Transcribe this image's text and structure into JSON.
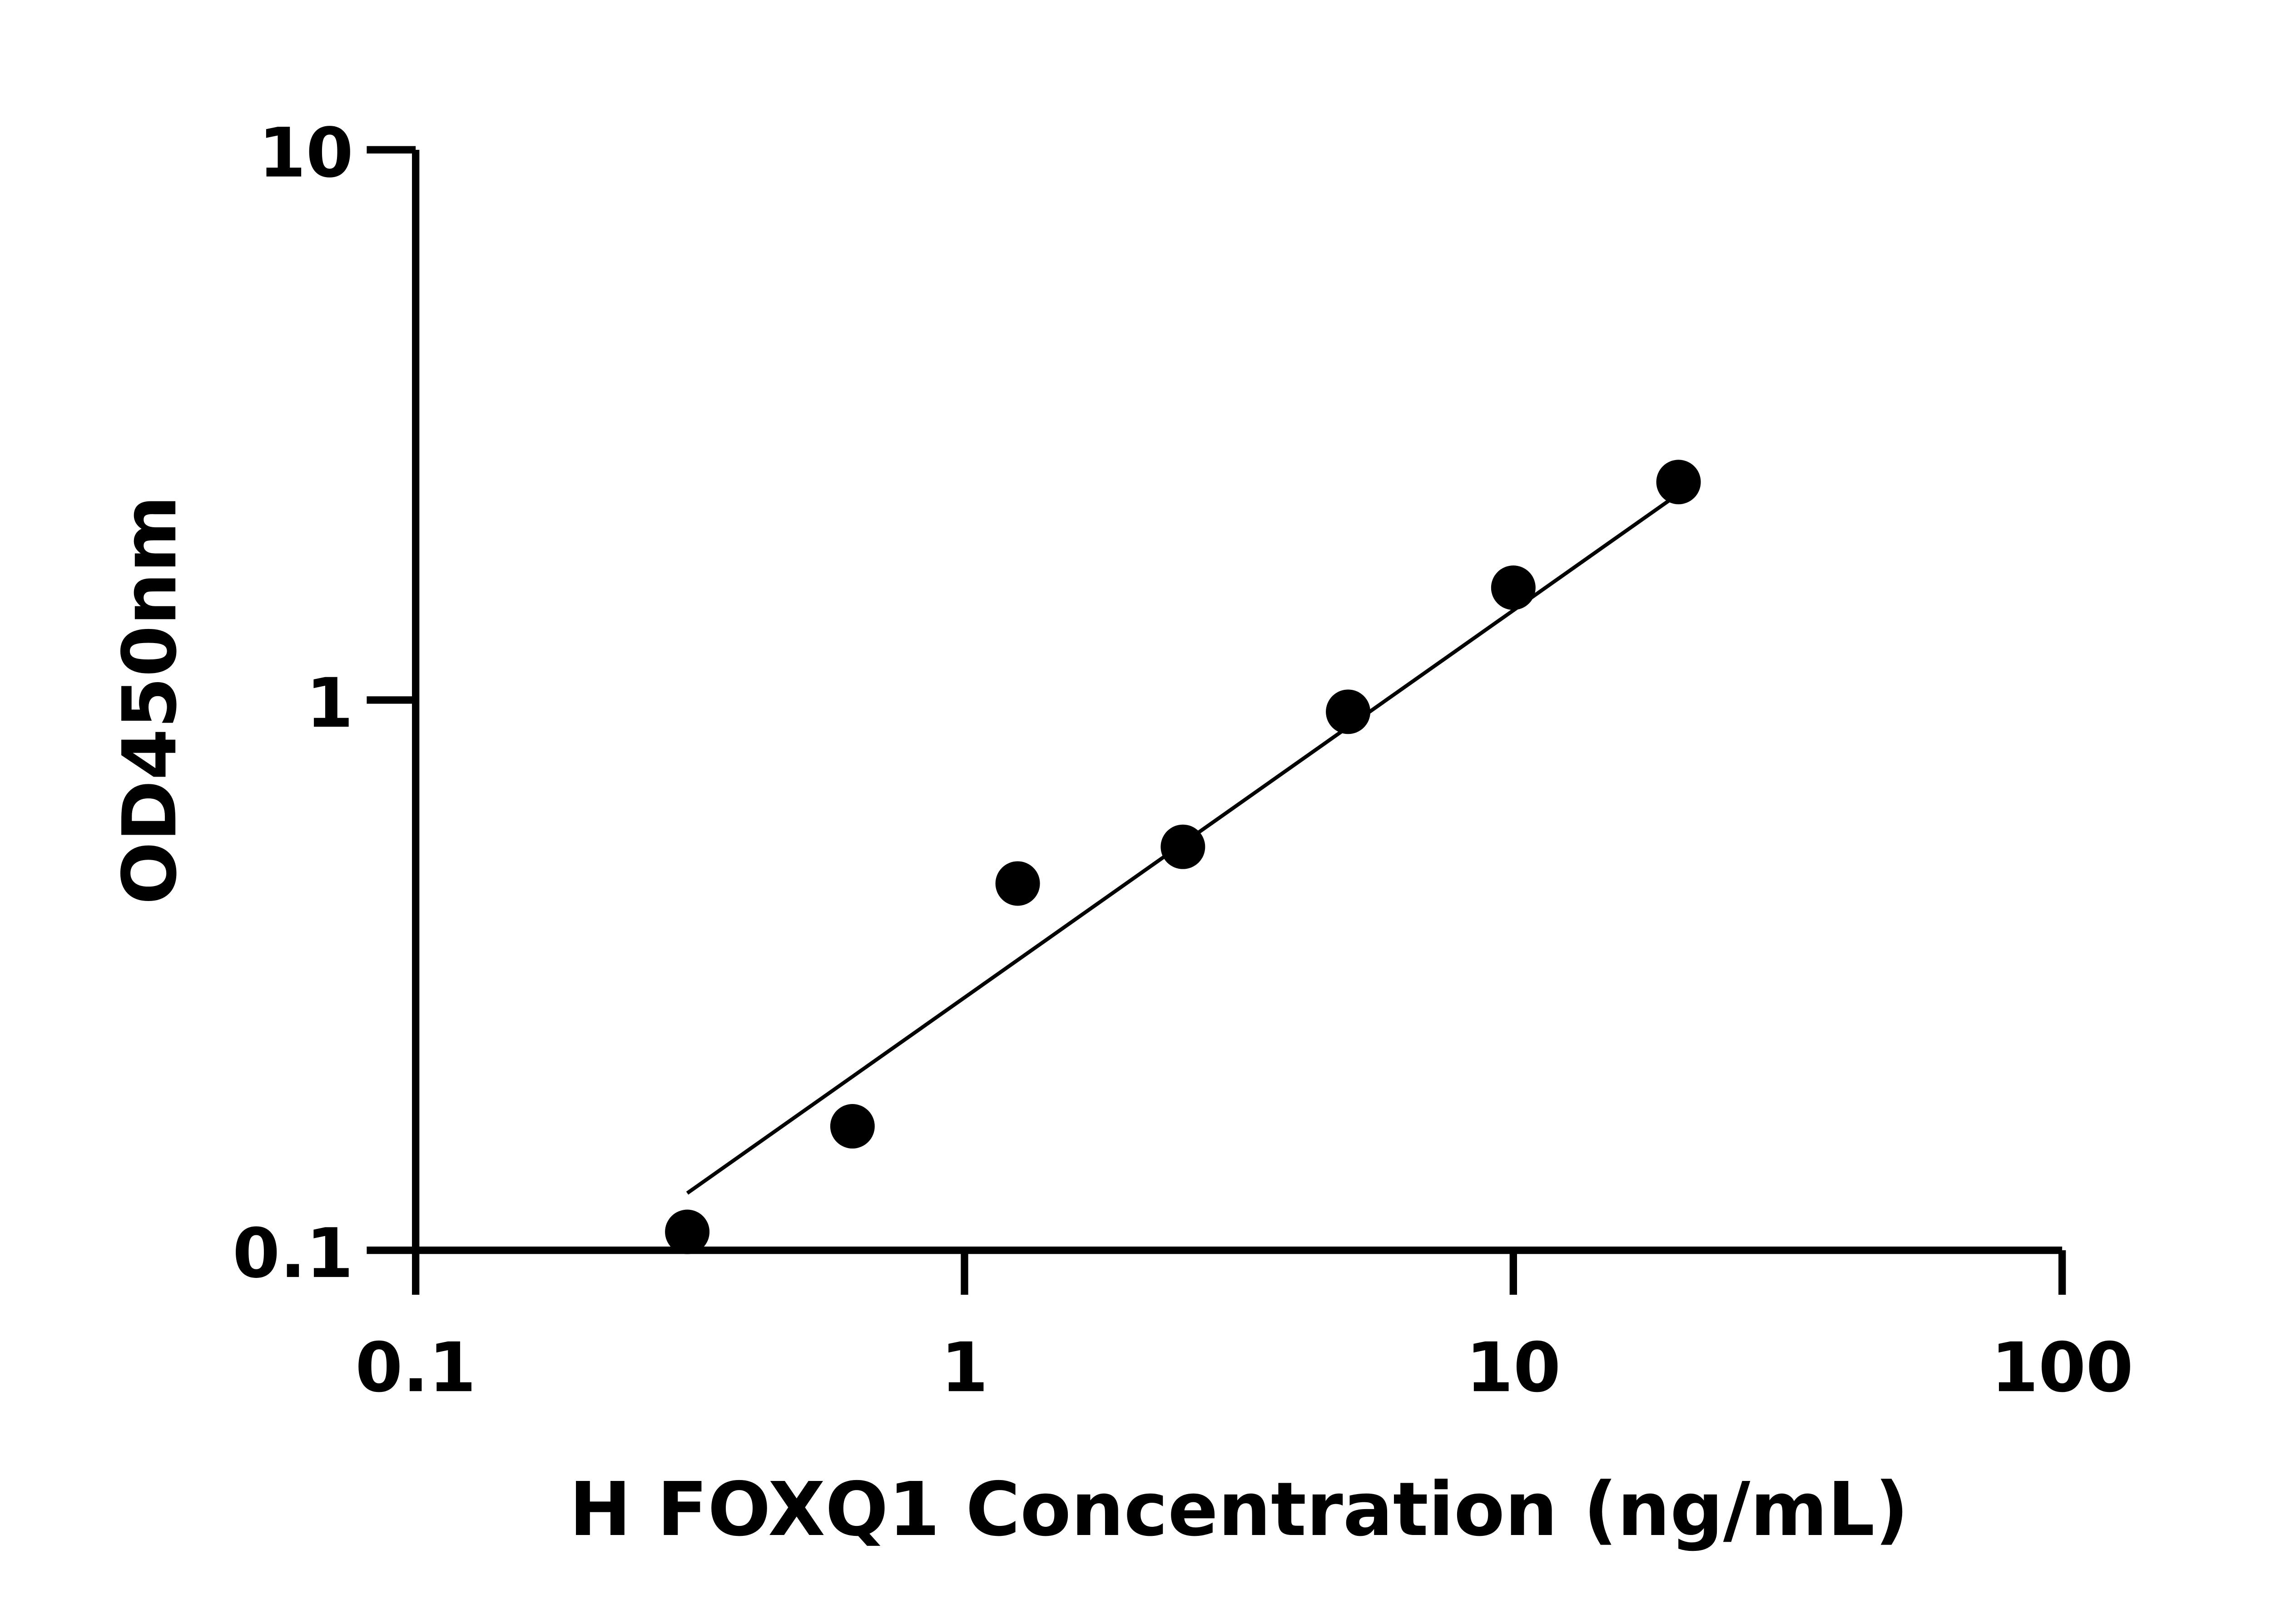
{
  "chart_data": {
    "type": "scatter",
    "title": "",
    "xlabel": "H FOXQ1 Concentration (ng/mL)",
    "ylabel": "OD450nm",
    "xscale": "log",
    "yscale": "log",
    "xlim": [
      0.1,
      100
    ],
    "ylim": [
      0.1,
      10
    ],
    "xticks": [
      "0.1",
      "1",
      "10",
      "100"
    ],
    "yticks": [
      "0.1",
      "1",
      "10"
    ],
    "grid": false,
    "points": {
      "x": [
        0.3125,
        0.625,
        1.25,
        2.5,
        5,
        10,
        20
      ],
      "y": [
        0.108,
        0.168,
        0.464,
        0.541,
        0.952,
        1.6,
        2.49
      ]
    },
    "fit_line": {
      "x": [
        0.3125,
        20
      ],
      "y": [
        0.127,
        2.37
      ]
    },
    "colors": {
      "points": "#000000",
      "line": "#000000",
      "axes": "#000000"
    }
  }
}
